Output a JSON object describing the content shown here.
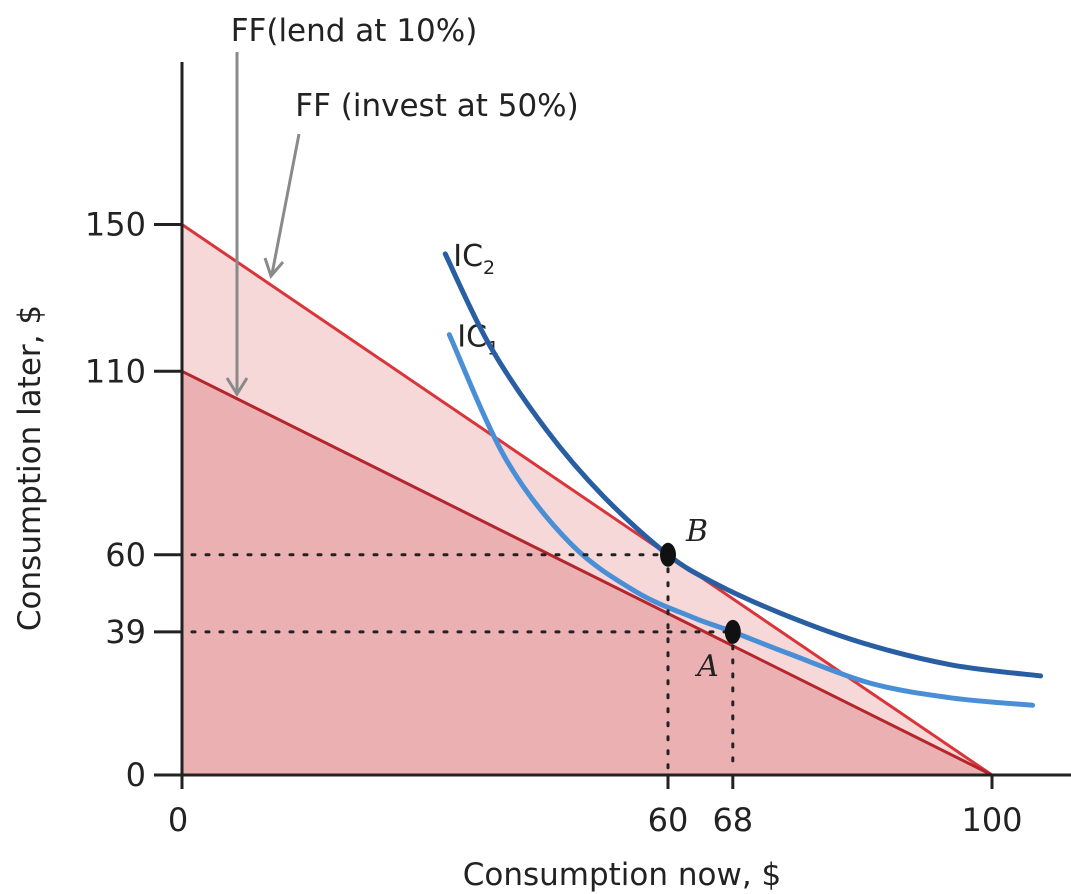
{
  "chart_data": {
    "type": "line",
    "xlabel": "Consumption now, $",
    "ylabel": "Consumption later, $",
    "xlim": [
      0,
      110
    ],
    "ylim": [
      0,
      185
    ],
    "x_ticks": [
      0,
      60,
      68,
      100
    ],
    "y_ticks": [
      0,
      39,
      60,
      110,
      150
    ],
    "frontiers": [
      {
        "label": "FF(lend at 10%)",
        "points": [
          [
            0,
            110
          ],
          [
            100,
            0
          ]
        ],
        "color": "#b5262c",
        "fill": "#ebb0b2"
      },
      {
        "label": "FF (invest at 50%)",
        "points": [
          [
            0,
            150
          ],
          [
            100,
            0
          ]
        ],
        "color": "#d8363b",
        "fill": "#f6d8d8"
      }
    ],
    "indifference_curves": [
      {
        "name": "IC",
        "subscript": "1",
        "color": "#4a8fd6",
        "points": [
          [
            33,
            120
          ],
          [
            40,
            86
          ],
          [
            48,
            63
          ],
          [
            56,
            50
          ],
          [
            63,
            43
          ],
          [
            68,
            39
          ],
          [
            75,
            33
          ],
          [
            85,
            25
          ],
          [
            95,
            21
          ],
          [
            105,
            19
          ]
        ]
      },
      {
        "name": "IC",
        "subscript": "2",
        "color": "#2a5ea3",
        "points": [
          [
            32.5,
            142
          ],
          [
            38,
            117
          ],
          [
            45,
            94
          ],
          [
            52,
            76
          ],
          [
            60,
            60
          ],
          [
            66,
            52
          ],
          [
            74,
            44
          ],
          [
            84,
            36
          ],
          [
            95,
            30
          ],
          [
            106,
            27
          ]
        ]
      }
    ],
    "points": [
      {
        "label": "A",
        "x": 68,
        "y": 39
      },
      {
        "label": "B",
        "x": 60,
        "y": 60
      }
    ]
  }
}
